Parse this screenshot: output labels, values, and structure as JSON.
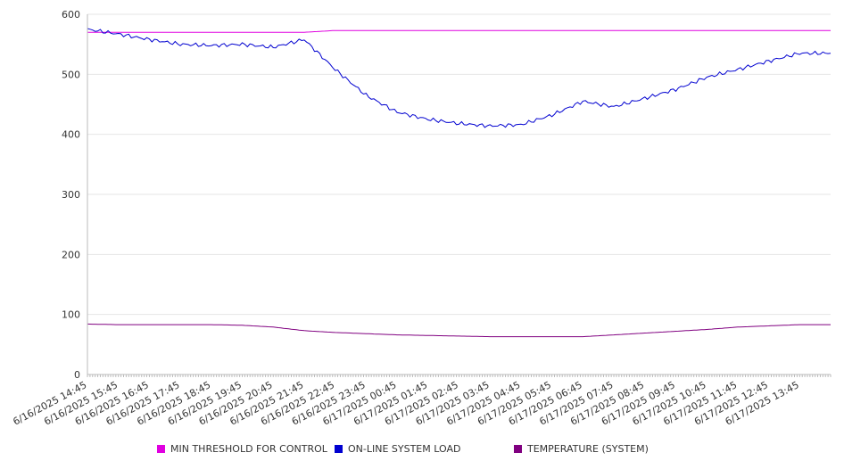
{
  "chart_data": {
    "type": "line",
    "title": "",
    "xlabel": "",
    "ylabel": "",
    "ylim": [
      0,
      600
    ],
    "yticks": [
      "0",
      "100",
      "200",
      "300",
      "400",
      "500",
      "600"
    ],
    "x": [
      "6/16/2025 14:45",
      "6/16/2025 15:45",
      "6/16/2025 16:45",
      "6/16/2025 17:45",
      "6/16/2025 18:45",
      "6/16/2025 19:45",
      "6/16/2025 20:45",
      "6/16/2025 21:45",
      "6/16/2025 22:45",
      "6/16/2025 23:45",
      "6/17/2025 00:45",
      "6/17/2025 01:45",
      "6/17/2025 02:45",
      "6/17/2025 03:45",
      "6/17/2025 04:45",
      "6/17/2025 05:45",
      "6/17/2025 06:45",
      "6/17/2025 07:45",
      "6/17/2025 08:45",
      "6/17/2025 09:45",
      "6/17/2025 10:45",
      "6/17/2025 11:45",
      "6/17/2025 12:45",
      "6/17/2025 13:45"
    ],
    "grid": true,
    "legend_position": "bottom",
    "series": [
      {
        "name": "MIN THRESHOLD FOR CONTROL",
        "color": "#e000e0",
        "values": [
          570,
          570,
          570,
          570,
          570,
          570,
          570,
          570,
          573,
          573,
          573,
          573,
          573,
          573,
          573,
          573,
          573,
          573,
          573,
          573,
          573,
          573,
          573,
          573
        ]
      },
      {
        "name": "ON-LINE SYSTEM LOAD",
        "color": "#0000d0",
        "values": [
          575,
          567,
          558,
          550,
          548,
          550,
          545,
          558,
          508,
          465,
          437,
          425,
          418,
          414,
          416,
          432,
          455,
          446,
          460,
          475,
          495,
          508,
          522,
          535
        ]
      },
      {
        "name": "TEMPERATURE (SYSTEM)",
        "color": "#800080",
        "values": [
          84,
          83,
          83,
          83,
          83,
          82,
          79,
          73,
          70,
          68,
          66,
          65,
          64,
          63,
          63,
          63,
          63,
          66,
          69,
          72,
          75,
          79,
          81,
          83
        ]
      }
    ]
  }
}
